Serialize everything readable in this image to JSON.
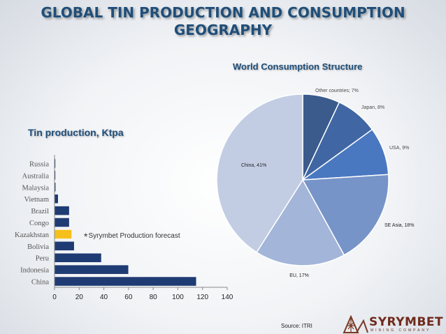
{
  "page": {
    "title_line1": "GLOBAL TIN PRODUCTION AND CONSUMPTION",
    "title_line2": "GEOGRAPHY",
    "forecast_note": "Syrymbet Production forecast",
    "forecast_marker": "*",
    "source": "Source: ITRI",
    "logo_name": "SYRYMBET",
    "logo_subtitle": "MINING COMPANY",
    "colors": {
      "title": "#1f4e79",
      "bar": "#1f3b73",
      "bar_highlight": "#f5c01d"
    }
  },
  "chart_data": [
    {
      "type": "bar",
      "orientation": "horizontal",
      "title": "Tin production, Ktpa",
      "categories": [
        "Russia",
        "Australia",
        "Malaysia",
        "Vietnam",
        "Brazil",
        "Congo",
        "Kazakhstan",
        "Bolivia",
        "Peru",
        "Indonesia",
        "China"
      ],
      "values": [
        0.5,
        0.8,
        1,
        3,
        12,
        12,
        14,
        16,
        38,
        60,
        115
      ],
      "highlight": "Kazakhstan",
      "xlim": [
        0,
        140
      ],
      "xticks": [
        0,
        20,
        40,
        60,
        80,
        100,
        120,
        140
      ],
      "grid": false
    },
    {
      "type": "pie",
      "title": "World Consumption Structure",
      "slices": [
        {
          "label": "Other countries; 7%",
          "value": 7,
          "color": "#3a5b8c"
        },
        {
          "label": "Japan, 8%",
          "value": 8,
          "color": "#4066a3"
        },
        {
          "label": "USA, 9%",
          "value": 9,
          "color": "#4a78c0"
        },
        {
          "label": "SE Asia, 18%",
          "value": 18,
          "color": "#7794c8"
        },
        {
          "label": "EU, 17%",
          "value": 17,
          "color": "#a3b5d8"
        },
        {
          "label": "China, 41%",
          "value": 41,
          "color": "#c2cde4"
        }
      ]
    }
  ]
}
